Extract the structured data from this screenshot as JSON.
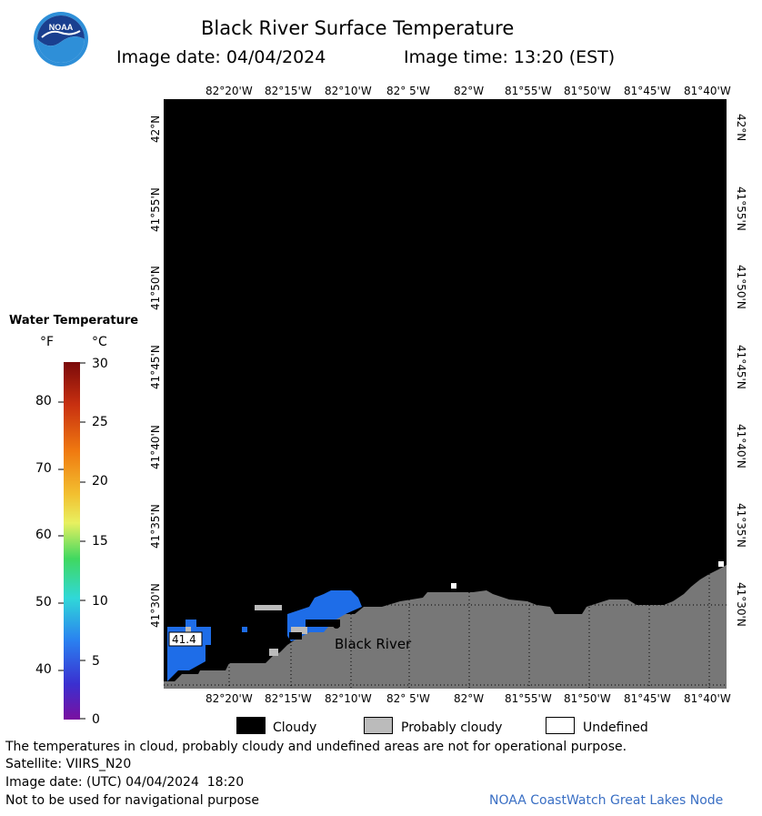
{
  "header": {
    "title": "Black River Surface Temperature",
    "image_date": "Image date: 04/04/2024",
    "image_time": "Image time: 13:20 (EST)"
  },
  "logo": {
    "text": "NOAA",
    "colors": {
      "outer": "#ffffff",
      "top": "#1a3f8f",
      "bottom": "#2e8fd8"
    }
  },
  "map": {
    "lon_labels": [
      "82°20'W",
      "82°15'W",
      "82°10'W",
      "82° 5'W",
      "82°W",
      "81°55'W",
      "81°50'W",
      "81°45'W",
      "81°40'W"
    ],
    "lat_labels": [
      "42°N",
      "41°55'N",
      "41°50'N",
      "41°45'N",
      "41°40'N",
      "41°35'N",
      "41°30'N"
    ],
    "place_label": "Black River",
    "temp_label": "41.4",
    "colors": {
      "water_no_data": "#000000",
      "land": "#777777",
      "water_temp": "#1e6de8",
      "probably_cloudy": "#bbbbbb",
      "undefined": "#ffffff"
    }
  },
  "scale": {
    "title": "Water Temperature",
    "unit_f": "°F",
    "unit_c": "°C",
    "f_labels": [
      "80",
      "70",
      "60",
      "50",
      "40"
    ],
    "c_labels": [
      "30",
      "25",
      "20",
      "15",
      "10",
      "5",
      "0"
    ],
    "f_range": [
      32,
      86
    ],
    "c_range": [
      0,
      30
    ]
  },
  "legend": {
    "cloudy": "Cloudy",
    "probably_cloudy": "Probably cloudy",
    "undefined": "Undefined"
  },
  "footer": {
    "disclaimer": "The temperatures in cloud, probably cloudy and undefined areas are not for operational purpose.",
    "satellite": "Satellite: VIIRS_N20",
    "utc_date": "Image date: (UTC) 04/04/2024  18:20",
    "nav_warning": "Not to be used for navigational purpose",
    "credit": "NOAA CoastWatch Great Lakes Node",
    "credit_color": "#3a6fc4"
  }
}
